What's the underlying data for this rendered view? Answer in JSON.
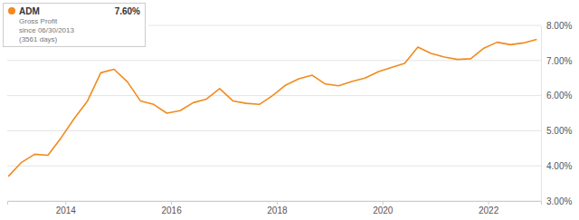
{
  "chart_data": {
    "type": "line",
    "x": [
      2012.92,
      2013.17,
      2013.42,
      2013.67,
      2013.92,
      2014.17,
      2014.42,
      2014.67,
      2014.92,
      2015.17,
      2015.42,
      2015.67,
      2015.92,
      2016.17,
      2016.42,
      2016.67,
      2016.92,
      2017.17,
      2017.42,
      2017.67,
      2017.92,
      2018.17,
      2018.42,
      2018.67,
      2018.92,
      2019.17,
      2019.42,
      2019.67,
      2019.92,
      2020.17,
      2020.42,
      2020.67,
      2020.92,
      2021.17,
      2021.42,
      2021.67,
      2021.92,
      2022.17,
      2022.42,
      2022.67,
      2022.92
    ],
    "series": [
      {
        "name": "ADM",
        "color": "#f28a1e",
        "values": [
          3.7,
          4.1,
          4.33,
          4.3,
          4.8,
          5.35,
          5.85,
          6.65,
          6.75,
          6.4,
          5.85,
          5.75,
          5.5,
          5.57,
          5.8,
          5.9,
          6.2,
          5.85,
          5.78,
          5.75,
          6.0,
          6.3,
          6.48,
          6.58,
          6.33,
          6.28,
          6.4,
          6.5,
          6.68,
          6.8,
          6.92,
          7.38,
          7.2,
          7.1,
          7.03,
          7.05,
          7.35,
          7.52,
          7.45,
          7.5,
          7.6
        ]
      }
    ],
    "annotations": [
      "7.60%",
      "Gross Profit",
      "since 06/30/2013",
      "(3561 days)"
    ],
    "xlim": [
      2012.9,
      2023.0
    ],
    "xticks": [
      2014,
      2016,
      2018,
      2020,
      2022
    ],
    "ylim": [
      3,
      8
    ],
    "yticks": [
      {
        "value": 3,
        "label": "3.00%"
      },
      {
        "value": 4,
        "label": "4.00%"
      },
      {
        "value": 5,
        "label": "5.00%"
      },
      {
        "value": 6,
        "label": "6.00%"
      },
      {
        "value": 7,
        "label": "7.00%"
      },
      {
        "value": 8,
        "label": "8.00%"
      }
    ],
    "grid": true,
    "legend": "top-left"
  }
}
